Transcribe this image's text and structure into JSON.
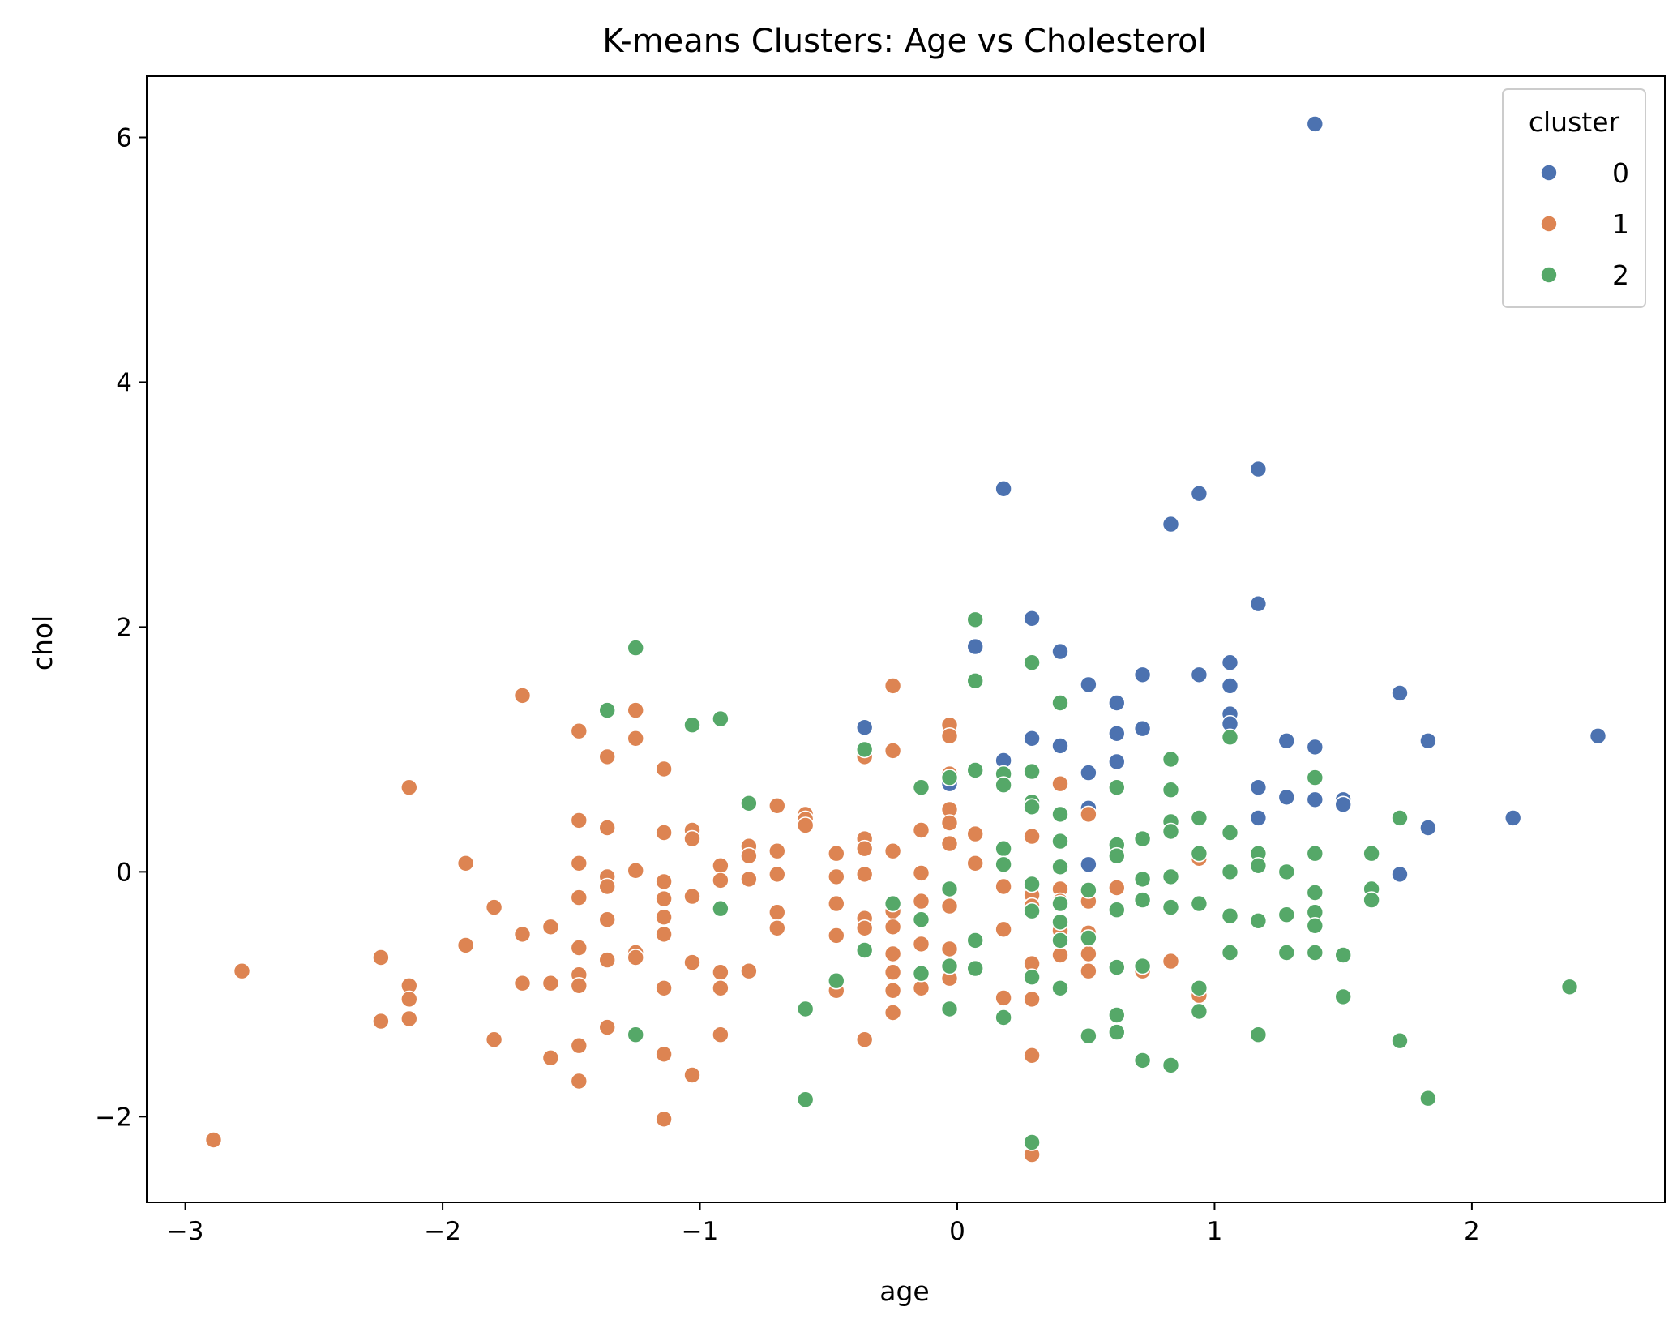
{
  "chart_data": {
    "type": "scatter",
    "title": "K-means Clusters: Age vs Cholesterol",
    "xlabel": "age",
    "ylabel": "chol",
    "xlim": [
      -3.15,
      2.75
    ],
    "ylim": [
      -2.7,
      6.5
    ],
    "xticks": [
      -3,
      -2,
      -1,
      0,
      1,
      2
    ],
    "yticks": [
      -2,
      0,
      2,
      4,
      6
    ],
    "xtick_labels": [
      "−3",
      "−2",
      "−1",
      "0",
      "1",
      "2"
    ],
    "ytick_labels": [
      "−2",
      "0",
      "2",
      "4",
      "6"
    ],
    "grid": false,
    "legend": {
      "title": "cluster",
      "placement": "top-right"
    },
    "series": [
      {
        "name": "0",
        "color": "#4c72b0",
        "points": [
          [
            1.39,
            6.11
          ],
          [
            1.17,
            3.29
          ],
          [
            0.18,
            3.13
          ],
          [
            0.94,
            3.09
          ],
          [
            0.83,
            2.84
          ],
          [
            1.17,
            2.19
          ],
          [
            0.29,
            2.07
          ],
          [
            0.07,
            1.84
          ],
          [
            0.4,
            1.8
          ],
          [
            1.06,
            1.71
          ],
          [
            0.72,
            1.61
          ],
          [
            0.94,
            1.61
          ],
          [
            0.51,
            1.53
          ],
          [
            1.06,
            1.52
          ],
          [
            1.72,
            1.46
          ],
          [
            0.62,
            1.38
          ],
          [
            1.06,
            1.29
          ],
          [
            1.06,
            1.21
          ],
          [
            -0.36,
            1.18
          ],
          [
            0.72,
            1.17
          ],
          [
            0.62,
            1.13
          ],
          [
            2.49,
            1.11
          ],
          [
            0.29,
            1.09
          ],
          [
            1.28,
            1.07
          ],
          [
            1.83,
            1.07
          ],
          [
            0.4,
            1.03
          ],
          [
            1.39,
            1.02
          ],
          [
            0.18,
            0.91
          ],
          [
            0.62,
            0.9
          ],
          [
            0.51,
            0.81
          ],
          [
            -0.03,
            0.72
          ],
          [
            1.17,
            0.69
          ],
          [
            1.28,
            0.61
          ],
          [
            1.39,
            0.59
          ],
          [
            1.5,
            0.59
          ],
          [
            1.5,
            0.55
          ],
          [
            0.51,
            0.52
          ],
          [
            2.16,
            0.44
          ],
          [
            1.17,
            0.44
          ],
          [
            1.83,
            0.36
          ],
          [
            0.51,
            0.06
          ],
          [
            1.72,
            -0.02
          ]
        ]
      },
      {
        "name": "1",
        "color": "#dd8452",
        "points": [
          [
            -2.89,
            -2.19
          ],
          [
            -2.78,
            -0.81
          ],
          [
            -2.24,
            -0.7
          ],
          [
            -2.24,
            -1.22
          ],
          [
            -2.13,
            0.69
          ],
          [
            -2.13,
            -0.93
          ],
          [
            -2.13,
            -1.04
          ],
          [
            -2.13,
            -1.2
          ],
          [
            -1.91,
            0.07
          ],
          [
            -1.91,
            -0.6
          ],
          [
            -1.8,
            -0.29
          ],
          [
            -1.8,
            -1.37
          ],
          [
            -1.69,
            1.44
          ],
          [
            -1.69,
            -0.51
          ],
          [
            -1.69,
            -0.91
          ],
          [
            -1.58,
            -0.45
          ],
          [
            -1.58,
            -0.91
          ],
          [
            -1.58,
            -1.52
          ],
          [
            -1.47,
            1.15
          ],
          [
            -1.47,
            0.42
          ],
          [
            -1.47,
            0.07
          ],
          [
            -1.47,
            -0.21
          ],
          [
            -1.47,
            -0.62
          ],
          [
            -1.47,
            -0.84
          ],
          [
            -1.47,
            -0.93
          ],
          [
            -1.47,
            -1.42
          ],
          [
            -1.47,
            -1.71
          ],
          [
            -1.36,
            0.94
          ],
          [
            -1.36,
            0.36
          ],
          [
            -1.36,
            -0.04
          ],
          [
            -1.36,
            -0.12
          ],
          [
            -1.36,
            -0.39
          ],
          [
            -1.36,
            -0.72
          ],
          [
            -1.36,
            -1.27
          ],
          [
            -1.25,
            1.32
          ],
          [
            -1.25,
            1.09
          ],
          [
            -1.25,
            0.01
          ],
          [
            -1.25,
            -0.66
          ],
          [
            -1.25,
            -0.7
          ],
          [
            -1.14,
            0.84
          ],
          [
            -1.14,
            0.32
          ],
          [
            -1.14,
            -0.08
          ],
          [
            -1.14,
            -0.22
          ],
          [
            -1.14,
            -0.37
          ],
          [
            -1.14,
            -0.51
          ],
          [
            -1.14,
            -0.95
          ],
          [
            -1.14,
            -1.49
          ],
          [
            -1.14,
            -2.02
          ],
          [
            -1.03,
            0.34
          ],
          [
            -1.03,
            0.27
          ],
          [
            -1.03,
            -0.2
          ],
          [
            -1.03,
            -0.74
          ],
          [
            -1.03,
            -1.66
          ],
          [
            -0.92,
            0.05
          ],
          [
            -0.92,
            -0.07
          ],
          [
            -0.92,
            -0.82
          ],
          [
            -0.92,
            -0.95
          ],
          [
            -0.92,
            -1.33
          ],
          [
            -0.81,
            0.21
          ],
          [
            -0.81,
            0.13
          ],
          [
            -0.81,
            -0.06
          ],
          [
            -0.81,
            -0.81
          ],
          [
            -0.7,
            0.54
          ],
          [
            -0.7,
            0.17
          ],
          [
            -0.7,
            -0.02
          ],
          [
            -0.7,
            -0.33
          ],
          [
            -0.7,
            -0.46
          ],
          [
            -0.59,
            0.47
          ],
          [
            -0.59,
            0.43
          ],
          [
            -0.59,
            0.38
          ],
          [
            -0.47,
            0.15
          ],
          [
            -0.47,
            -0.04
          ],
          [
            -0.47,
            -0.26
          ],
          [
            -0.47,
            -0.52
          ],
          [
            -0.47,
            -0.97
          ],
          [
            -0.36,
            0.94
          ],
          [
            -0.36,
            0.27
          ],
          [
            -0.36,
            0.19
          ],
          [
            -0.36,
            -0.02
          ],
          [
            -0.36,
            -0.38
          ],
          [
            -0.36,
            -0.46
          ],
          [
            -0.36,
            -1.37
          ],
          [
            -0.25,
            1.52
          ],
          [
            -0.25,
            0.99
          ],
          [
            -0.25,
            0.17
          ],
          [
            -0.25,
            -0.26
          ],
          [
            -0.25,
            -0.32
          ],
          [
            -0.25,
            -0.45
          ],
          [
            -0.25,
            -0.67
          ],
          [
            -0.25,
            -0.82
          ],
          [
            -0.25,
            -0.97
          ],
          [
            -0.25,
            -1.15
          ],
          [
            -0.14,
            0.34
          ],
          [
            -0.14,
            -0.01
          ],
          [
            -0.14,
            -0.24
          ],
          [
            -0.14,
            -0.59
          ],
          [
            -0.14,
            -0.95
          ],
          [
            -0.03,
            1.2
          ],
          [
            -0.03,
            1.11
          ],
          [
            -0.03,
            0.8
          ],
          [
            -0.03,
            0.51
          ],
          [
            -0.03,
            0.4
          ],
          [
            -0.03,
            0.23
          ],
          [
            -0.03,
            -0.28
          ],
          [
            -0.03,
            -0.63
          ],
          [
            -0.03,
            -0.87
          ],
          [
            0.07,
            0.31
          ],
          [
            0.07,
            0.07
          ],
          [
            0.18,
            -0.12
          ],
          [
            0.18,
            -0.47
          ],
          [
            0.18,
            -1.03
          ],
          [
            0.29,
            0.29
          ],
          [
            0.29,
            -0.19
          ],
          [
            0.29,
            -0.28
          ],
          [
            0.29,
            -0.75
          ],
          [
            0.29,
            -1.04
          ],
          [
            0.29,
            -1.5
          ],
          [
            0.29,
            -2.31
          ],
          [
            0.4,
            0.72
          ],
          [
            0.4,
            -0.14
          ],
          [
            0.4,
            -0.24
          ],
          [
            0.4,
            -0.48
          ],
          [
            0.4,
            -0.68
          ],
          [
            0.51,
            0.47
          ],
          [
            0.51,
            -0.24
          ],
          [
            0.51,
            -0.5
          ],
          [
            0.51,
            -0.67
          ],
          [
            0.51,
            -0.81
          ],
          [
            0.62,
            -0.13
          ],
          [
            0.72,
            -0.81
          ],
          [
            0.83,
            -0.73
          ],
          [
            0.94,
            0.11
          ],
          [
            0.94,
            -1.01
          ]
        ]
      },
      {
        "name": "2",
        "color": "#55a868",
        "points": [
          [
            -1.25,
            1.83
          ],
          [
            -1.36,
            1.32
          ],
          [
            -1.25,
            -1.33
          ],
          [
            -1.03,
            1.2
          ],
          [
            -0.92,
            1.25
          ],
          [
            -0.92,
            -0.3
          ],
          [
            -0.81,
            0.56
          ],
          [
            -0.59,
            -1.12
          ],
          [
            -0.59,
            -1.86
          ],
          [
            -0.47,
            -0.89
          ],
          [
            -0.36,
            1.0
          ],
          [
            -0.36,
            -0.64
          ],
          [
            -0.25,
            -0.26
          ],
          [
            -0.14,
            0.69
          ],
          [
            -0.14,
            -0.39
          ],
          [
            -0.14,
            -0.83
          ],
          [
            -0.03,
            0.77
          ],
          [
            -0.03,
            -0.14
          ],
          [
            -0.03,
            -0.77
          ],
          [
            -0.03,
            -1.12
          ],
          [
            0.07,
            2.06
          ],
          [
            0.07,
            1.56
          ],
          [
            0.07,
            0.83
          ],
          [
            0.07,
            -0.56
          ],
          [
            0.07,
            -0.79
          ],
          [
            0.18,
            0.8
          ],
          [
            0.18,
            0.71
          ],
          [
            0.18,
            0.19
          ],
          [
            0.18,
            0.06
          ],
          [
            0.18,
            -1.19
          ],
          [
            0.29,
            1.71
          ],
          [
            0.29,
            0.82
          ],
          [
            0.29,
            0.57
          ],
          [
            0.29,
            0.53
          ],
          [
            0.29,
            -0.1
          ],
          [
            0.29,
            -0.32
          ],
          [
            0.29,
            -0.86
          ],
          [
            0.29,
            -2.21
          ],
          [
            0.4,
            1.38
          ],
          [
            0.4,
            0.47
          ],
          [
            0.4,
            0.25
          ],
          [
            0.4,
            0.04
          ],
          [
            0.4,
            -0.26
          ],
          [
            0.4,
            -0.41
          ],
          [
            0.4,
            -0.56
          ],
          [
            0.4,
            -0.95
          ],
          [
            0.51,
            -0.15
          ],
          [
            0.51,
            -0.54
          ],
          [
            0.51,
            -1.34
          ],
          [
            0.62,
            0.69
          ],
          [
            0.62,
            0.22
          ],
          [
            0.62,
            0.13
          ],
          [
            0.62,
            -0.31
          ],
          [
            0.62,
            -0.78
          ],
          [
            0.62,
            -1.17
          ],
          [
            0.62,
            -1.31
          ],
          [
            0.72,
            0.27
          ],
          [
            0.72,
            -0.06
          ],
          [
            0.72,
            -0.23
          ],
          [
            0.72,
            -0.77
          ],
          [
            0.72,
            -1.54
          ],
          [
            0.83,
            0.92
          ],
          [
            0.83,
            0.67
          ],
          [
            0.83,
            0.41
          ],
          [
            0.83,
            0.33
          ],
          [
            0.83,
            -0.04
          ],
          [
            0.83,
            -0.29
          ],
          [
            0.83,
            -1.58
          ],
          [
            0.94,
            0.44
          ],
          [
            0.94,
            0.15
          ],
          [
            0.94,
            -0.26
          ],
          [
            0.94,
            -0.95
          ],
          [
            0.94,
            -1.14
          ],
          [
            1.06,
            1.1
          ],
          [
            1.06,
            0.32
          ],
          [
            1.06,
            0.0
          ],
          [
            1.06,
            -0.36
          ],
          [
            1.06,
            -0.66
          ],
          [
            1.17,
            0.15
          ],
          [
            1.17,
            0.05
          ],
          [
            1.17,
            -0.4
          ],
          [
            1.17,
            -1.33
          ],
          [
            1.28,
            0.0
          ],
          [
            1.28,
            -0.35
          ],
          [
            1.28,
            -0.66
          ],
          [
            1.39,
            0.77
          ],
          [
            1.39,
            0.15
          ],
          [
            1.39,
            -0.17
          ],
          [
            1.39,
            -0.33
          ],
          [
            1.39,
            -0.44
          ],
          [
            1.39,
            -0.66
          ],
          [
            1.5,
            -0.68
          ],
          [
            1.5,
            -1.02
          ],
          [
            1.61,
            0.15
          ],
          [
            1.61,
            -0.14
          ],
          [
            1.61,
            -0.23
          ],
          [
            1.72,
            0.44
          ],
          [
            1.72,
            -1.38
          ],
          [
            1.83,
            -1.85
          ],
          [
            2.38,
            -0.94
          ]
        ]
      }
    ]
  }
}
